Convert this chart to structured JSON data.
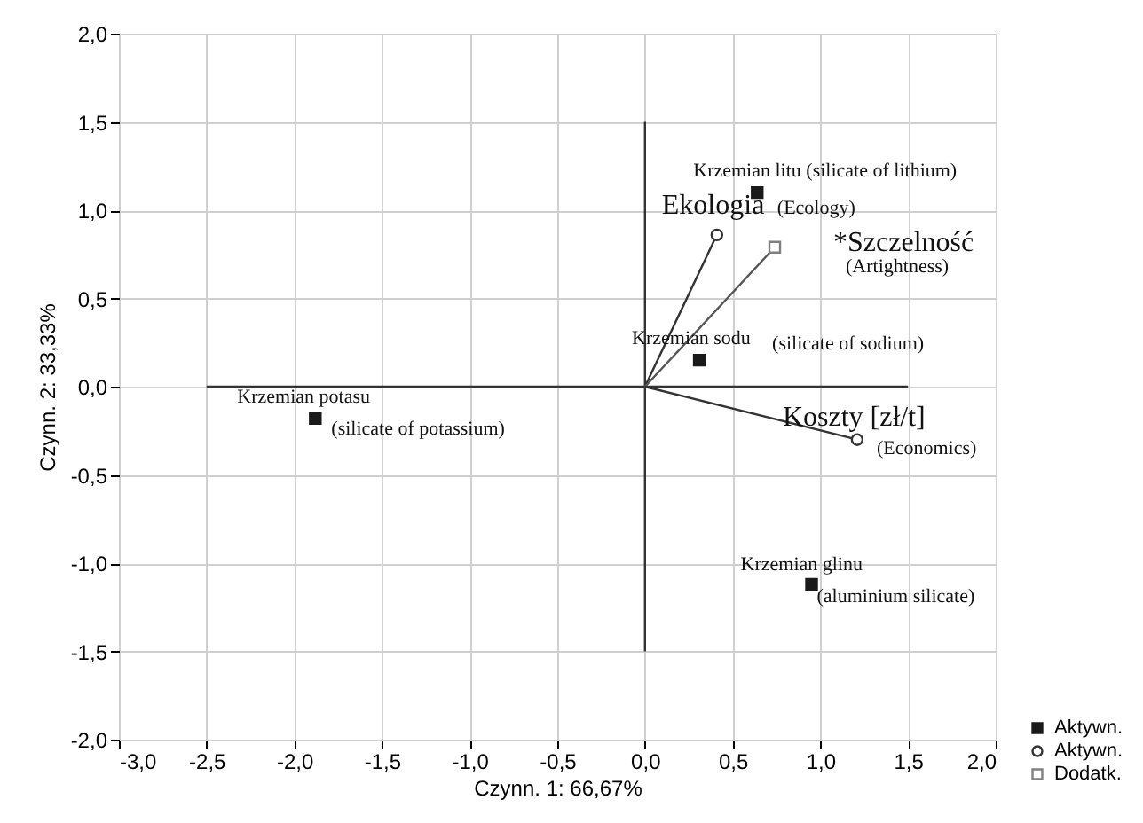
{
  "chart_data": {
    "type": "scatter",
    "xlabel": "Czynn. 1: 66,67%",
    "ylabel": "Czynn. 2: 33,33%",
    "xlim": [
      -3,
      2
    ],
    "ylim": [
      -2,
      2
    ],
    "xticks": [
      {
        "value": -3,
        "label": "-3,0"
      },
      {
        "value": -2.5,
        "label": "-2,5"
      },
      {
        "value": -2,
        "label": "-2,0"
      },
      {
        "value": -1.5,
        "label": "-1,5"
      },
      {
        "value": -1,
        "label": "-1,0"
      },
      {
        "value": -0.5,
        "label": "-0,5"
      },
      {
        "value": 0,
        "label": "0,0"
      },
      {
        "value": 0.5,
        "label": "0,5"
      },
      {
        "value": 1,
        "label": "1,0"
      },
      {
        "value": 1.5,
        "label": "1,5"
      },
      {
        "value": 2,
        "label": "2,0"
      }
    ],
    "yticks": [
      {
        "value": -2,
        "label": "-2,0"
      },
      {
        "value": -1.5,
        "label": "-1,5"
      },
      {
        "value": -1,
        "label": "-1,0"
      },
      {
        "value": -0.5,
        "label": "-0,5"
      },
      {
        "value": 0,
        "label": "0,0"
      },
      {
        "value": 0.5,
        "label": "0,5"
      },
      {
        "value": 1,
        "label": "1,0"
      },
      {
        "value": 1.5,
        "label": "1,5"
      },
      {
        "value": 2,
        "label": "2,0"
      }
    ],
    "grid": true,
    "legend": "bottom right",
    "series": [
      {
        "name": "Aktywn.",
        "type": "scatter",
        "marker": "square",
        "color": "#1a1a1a",
        "x": [
          0.64,
          0.31,
          -1.88,
          0.95
        ],
        "values": [
          1.1,
          0.15,
          -0.18,
          -1.12
        ]
      },
      {
        "name": "Aktywn.",
        "type": "scatter",
        "marker": "circle",
        "color": "#333333",
        "x": [
          0.41,
          1.21
        ],
        "values": [
          0.86,
          -0.3
        ]
      },
      {
        "name": "Dodatk.",
        "type": "scatter",
        "marker": "square",
        "color": "#808080",
        "x": [
          0.74
        ],
        "values": [
          0.79
        ]
      },
      {
        "type": "line",
        "color": "#333333",
        "x": [
          -2.5,
          1.5
        ],
        "values": [
          0,
          0
        ]
      },
      {
        "type": "line",
        "color": "#333333",
        "x": [
          0,
          0
        ],
        "values": [
          -1.5,
          1.5
        ]
      },
      {
        "type": "line",
        "color": "#333333",
        "x": [
          0,
          0.41
        ],
        "values": [
          0,
          0.86
        ]
      },
      {
        "type": "line",
        "color": "#555555",
        "x": [
          0,
          0.74
        ],
        "values": [
          0,
          0.79
        ]
      },
      {
        "type": "line",
        "color": "#333333",
        "x": [
          0,
          1.21
        ],
        "values": [
          0,
          -0.3
        ]
      }
    ],
    "annotations": [
      {
        "text": "Krzemian litu (silicate of lithium)",
        "x": 0.64,
        "y": 1.1
      },
      {
        "text": "Ekologia",
        "x": 0.41,
        "y": 0.86
      },
      "(Ecology)",
      {
        "text": "*Szczelność",
        "x": 0.74,
        "y": 0.79
      },
      "(Artightness)",
      {
        "text": "Krzemian sodu",
        "x": 0.31,
        "y": 0.15
      },
      "(silicate of sodium)",
      {
        "text": "Koszty [zł/t]",
        "x": 1.21,
        "y": -0.3
      },
      {
        "text": "(Economics)",
        "x": 1.21,
        "y": -0.3
      },
      {
        "text": "Krzemian glinu",
        "x": 0.95,
        "y": -1.12
      },
      {
        "text": "(aluminium silicate)",
        "x": 0.95,
        "y": -1.12
      },
      {
        "text": "Krzemian potasu",
        "x": -1.88,
        "y": -0.18
      },
      {
        "text": "(silicate of potassium)",
        "x": -1.88,
        "y": -0.18
      }
    ]
  }
}
